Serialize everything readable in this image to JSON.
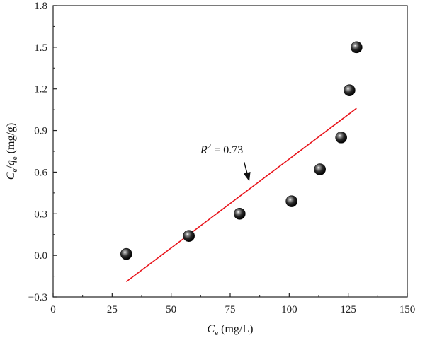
{
  "chart_data": {
    "type": "scatter",
    "title": "",
    "xlabel": {
      "main": "C",
      "sub": "e",
      "unit": " (mg/L)"
    },
    "ylabel": {
      "c": "C",
      "c_sub": "e",
      "slash": "/",
      "q": "q",
      "q_sub": "e",
      "unit": " (mg/g)"
    },
    "xlim": [
      0,
      150
    ],
    "ylim": [
      -0.3,
      1.8
    ],
    "x_ticks": [
      0,
      25,
      50,
      75,
      100,
      125,
      150
    ],
    "x_tick_labels": [
      "0",
      "25",
      "50",
      "75",
      "100",
      "125",
      "150"
    ],
    "y_ticks": [
      -0.3,
      0.0,
      0.3,
      0.6,
      0.9,
      1.2,
      1.5,
      1.8
    ],
    "y_tick_labels": [
      "−0.3",
      "0.0",
      "0.3",
      "0.6",
      "0.9",
      "1.2",
      "1.5",
      "1.8"
    ],
    "grid": false,
    "points": [
      {
        "x": 31,
        "y": 0.01
      },
      {
        "x": 57.5,
        "y": 0.14
      },
      {
        "x": 79,
        "y": 0.3
      },
      {
        "x": 101,
        "y": 0.39
      },
      {
        "x": 113,
        "y": 0.62
      },
      {
        "x": 122,
        "y": 0.85
      },
      {
        "x": 125.5,
        "y": 1.19
      },
      {
        "x": 128.5,
        "y": 1.5
      }
    ],
    "fit_line": {
      "x": [
        31,
        128.5
      ],
      "y": [
        -0.19,
        1.06
      ],
      "color": "#e8141b"
    },
    "annotation": {
      "r": "R",
      "sup": "2",
      "rest": " = 0.73",
      "arrow_to": {
        "x": 83,
        "y": 0.54
      }
    },
    "marker_color": "#111111"
  }
}
